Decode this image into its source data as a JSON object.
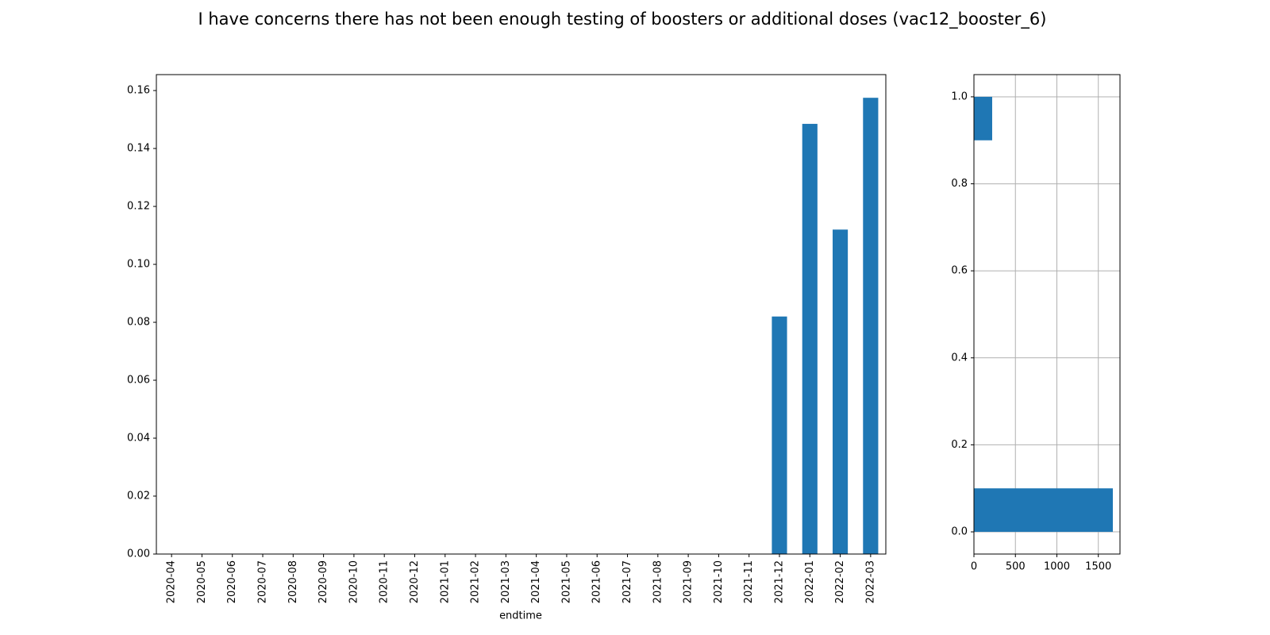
{
  "chart_data": [
    {
      "type": "bar",
      "title": "I have concerns there has not been enough testing of boosters or additional doses (vac12_booster_6)",
      "xlabel": "endtime",
      "categories": [
        "2020-04",
        "2020-05",
        "2020-06",
        "2020-07",
        "2020-08",
        "2020-09",
        "2020-10",
        "2020-11",
        "2020-12",
        "2021-01",
        "2021-02",
        "2021-03",
        "2021-04",
        "2021-05",
        "2021-06",
        "2021-07",
        "2021-08",
        "2021-09",
        "2021-10",
        "2021-11",
        "2021-12",
        "2022-01",
        "2022-02",
        "2022-03"
      ],
      "values": [
        0,
        0,
        0,
        0,
        0,
        0,
        0,
        0,
        0,
        0,
        0,
        0,
        0,
        0,
        0,
        0,
        0,
        0,
        0,
        0,
        0.082,
        0.1485,
        0.112,
        0.1575
      ],
      "color": "#1f77b4",
      "ylim": [
        0,
        0.1655
      ],
      "yticks": [
        {
          "value": 0,
          "label": "0.00"
        },
        {
          "value": 0.02,
          "label": "0.02"
        },
        {
          "value": 0.04,
          "label": "0.04"
        },
        {
          "value": 0.06,
          "label": "0.06"
        },
        {
          "value": 0.08,
          "label": "0.08"
        },
        {
          "value": 0.1,
          "label": "0.10"
        },
        {
          "value": 0.12,
          "label": "0.12"
        },
        {
          "value": 0.14,
          "label": "0.14"
        },
        {
          "value": 0.16,
          "label": "0.16"
        }
      ],
      "grid": false
    },
    {
      "type": "histogram",
      "orientation": "horizontal",
      "bins": [
        0,
        0.1,
        0.2,
        0.3,
        0.4,
        0.5,
        0.6,
        0.7,
        0.8,
        0.9,
        1.0
      ],
      "values": [
        1675,
        0,
        0,
        0,
        0,
        0,
        0,
        0,
        0,
        220
      ],
      "color": "#1f77b4",
      "xlim": [
        0,
        1761
      ],
      "xticks": [
        0,
        500,
        1000,
        1500
      ],
      "ylim": [
        -0.051,
        1.051
      ],
      "yticks": [
        {
          "value": 0,
          "label": "0.0"
        },
        {
          "value": 0.2,
          "label": "0.2"
        },
        {
          "value": 0.4,
          "label": "0.4"
        },
        {
          "value": 0.6,
          "label": "0.6"
        },
        {
          "value": 0.8,
          "label": "0.8"
        },
        {
          "value": 1.0,
          "label": "1.0"
        }
      ],
      "grid": true
    }
  ]
}
